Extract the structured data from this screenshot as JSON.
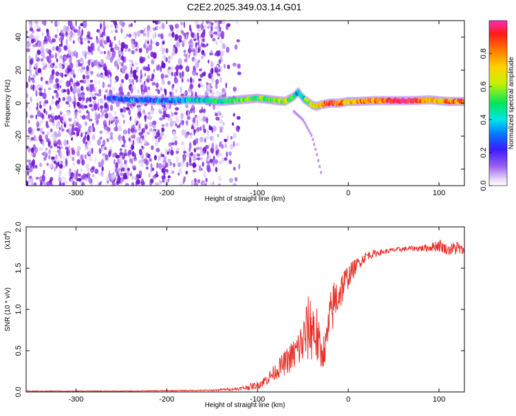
{
  "page_title": "C2E2.2025.349.03.14.G01",
  "colors": {
    "spectrum_low": "#7a1fd6",
    "spectrum_mid": "#00e65c",
    "spectrum_high": "#ff1a1a",
    "snr_line": "#e8302a",
    "axes": "#000000"
  },
  "chart_data": [
    {
      "type": "heatmap",
      "title": "C2E2.2025.349.03.14.G01",
      "xlabel": "Height of straight line (km)",
      "ylabel": "Frequency (Hz)",
      "xlim": [
        -355,
        128
      ],
      "ylim": [
        -50,
        50
      ],
      "x_ticks": [
        -300,
        -200,
        -100,
        0,
        100
      ],
      "x_tick_labels": [
        "-300",
        "-200",
        "-100",
        "0",
        "100"
      ],
      "y_ticks": [
        -40,
        -20,
        0,
        20,
        40
      ],
      "y_tick_labels": [
        "-40",
        "-20",
        "0",
        "20",
        "40"
      ],
      "colorbar": {
        "label": "Normalized spectral amplitude",
        "range": [
          0,
          1
        ],
        "ticks": [
          0.0,
          0.2,
          0.4,
          0.6,
          0.8
        ],
        "tick_labels": [
          "0.0",
          "0.2",
          "0.4",
          "0.6",
          "0.8"
        ]
      },
      "noise_region": {
        "x_range": [
          -355,
          -140
        ],
        "y_range": [
          -50,
          50
        ]
      },
      "signal_track": {
        "x": [
          -265,
          -240,
          -220,
          -200,
          -180,
          -160,
          -140,
          -120,
          -100,
          -85,
          -70,
          -60,
          -55,
          -50,
          -45,
          -40,
          -35,
          -30,
          -20,
          -10,
          0,
          10,
          30,
          50,
          70,
          90,
          110,
          128
        ],
        "frequency": [
          3,
          2,
          2,
          1.5,
          2,
          2,
          1,
          2,
          3,
          2,
          1,
          4,
          7,
          3,
          1,
          -1,
          -2,
          -1,
          0,
          0,
          1,
          1,
          1.5,
          1.5,
          1.5,
          2,
          1,
          1
        ],
        "amplitude": [
          0.25,
          0.3,
          0.3,
          0.3,
          0.35,
          0.4,
          0.45,
          0.5,
          0.55,
          0.55,
          0.6,
          0.5,
          0.35,
          0.45,
          0.55,
          0.6,
          0.65,
          0.7,
          0.95,
          0.85,
          0.7,
          0.75,
          0.8,
          0.95,
          0.92,
          0.7,
          0.8,
          0.85
        ]
      },
      "drift_branch": {
        "x": [
          -60,
          -50,
          -45,
          -40,
          -35,
          -30
        ],
        "frequency": [
          -5,
          -10,
          -15,
          -20,
          -30,
          -42
        ]
      }
    },
    {
      "type": "line",
      "title": "",
      "xlabel": "Height of straight line (km)",
      "ylabel": "SNR (10 * v/v)",
      "y_multiplier_label": "(x10",
      "y_multiplier_exp": "4",
      "y_multiplier_close": ")",
      "xlim": [
        -355,
        128
      ],
      "ylim": [
        0,
        2.0
      ],
      "x_ticks": [
        -300,
        -200,
        -100,
        0,
        100
      ],
      "x_tick_labels": [
        "-300",
        "-200",
        "-100",
        "0",
        "100"
      ],
      "y_ticks": [
        0.0,
        0.5,
        1.0,
        1.5,
        2.0
      ],
      "y_tick_labels": [
        "0.0",
        "0.5",
        "1.0",
        "1.5",
        "2.0"
      ],
      "series": [
        {
          "name": "SNR",
          "x": [
            -355,
            -300,
            -250,
            -200,
            -150,
            -120,
            -100,
            -90,
            -80,
            -70,
            -60,
            -50,
            -45,
            -40,
            -35,
            -30,
            -25,
            -20,
            -15,
            -10,
            -5,
            0,
            10,
            20,
            30,
            40,
            50,
            60,
            70,
            80,
            90,
            100,
            110,
            120,
            128
          ],
          "y": [
            0.01,
            0.01,
            0.01,
            0.015,
            0.02,
            0.04,
            0.08,
            0.15,
            0.25,
            0.35,
            0.45,
            0.6,
            0.75,
            0.8,
            0.7,
            0.45,
            0.55,
            0.9,
            1.1,
            1.2,
            1.3,
            1.4,
            1.55,
            1.65,
            1.68,
            1.7,
            1.72,
            1.73,
            1.74,
            1.74,
            1.75,
            1.78,
            1.72,
            1.75,
            1.7
          ],
          "noise_amplitude": [
            0.005,
            0.005,
            0.005,
            0.005,
            0.008,
            0.02,
            0.05,
            0.07,
            0.1,
            0.15,
            0.2,
            0.3,
            0.4,
            0.45,
            0.4,
            0.2,
            0.2,
            0.3,
            0.3,
            0.25,
            0.2,
            0.15,
            0.08,
            0.06,
            0.04,
            0.03,
            0.03,
            0.03,
            0.03,
            0.04,
            0.05,
            0.08,
            0.06,
            0.1,
            0.04
          ]
        }
      ]
    }
  ]
}
